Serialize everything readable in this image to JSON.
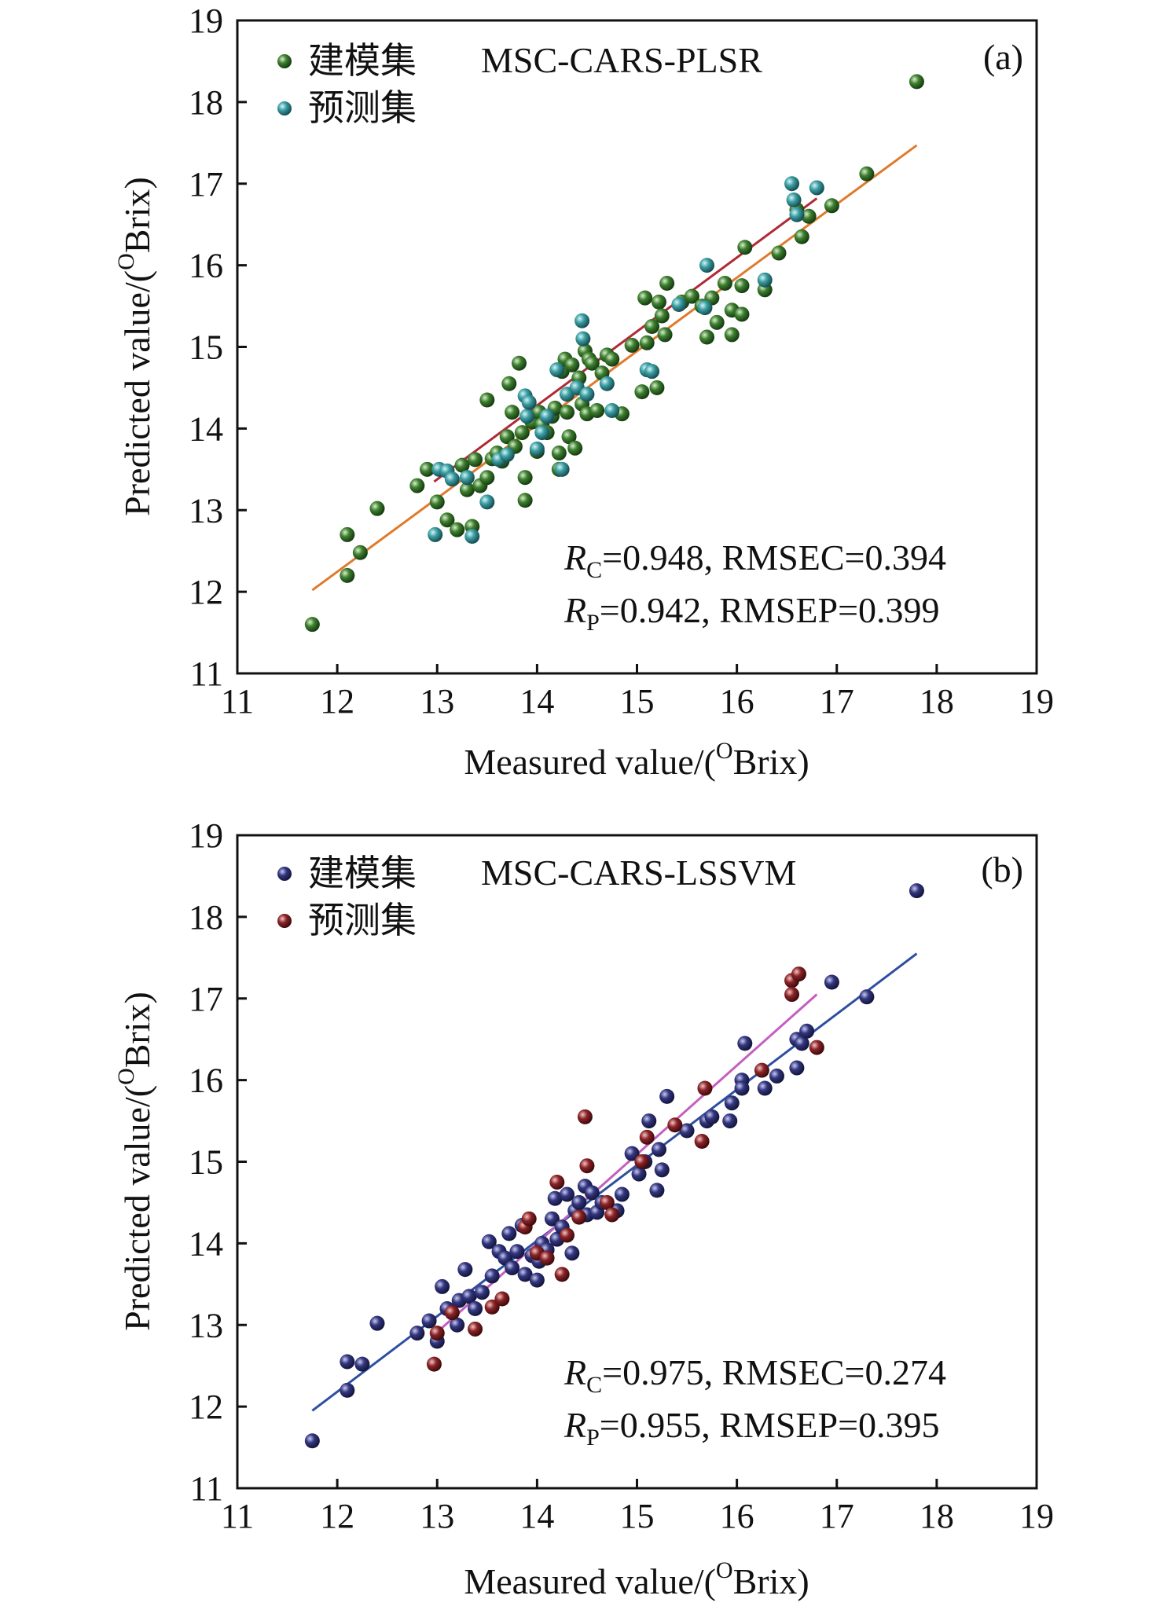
{
  "chart_data": [
    {
      "type": "scatter",
      "panel_label": "(a)",
      "model_label": "MSC-CARS-PLSR",
      "xlabel_parts": [
        "Measured value/(",
        "O",
        "Brix)"
      ],
      "ylabel_parts": [
        "Predicted value/(",
        "O",
        "Brix)"
      ],
      "xlim": [
        11,
        19
      ],
      "ylim": [
        11,
        19
      ],
      "xticks": [
        "11",
        "12",
        "13",
        "14",
        "15",
        "16",
        "17",
        "18",
        "19"
      ],
      "yticks": [
        "11",
        "12",
        "13",
        "14",
        "15",
        "16",
        "17",
        "18",
        "19"
      ],
      "legend": [
        "建模集",
        "预测集"
      ],
      "stats": [
        {
          "sym": "R",
          "sub": "C",
          "rest": "=0.948, RMSEC=0.394"
        },
        {
          "sym": "R",
          "sub": "P",
          "rest": "=0.942, RMSEP=0.399"
        }
      ],
      "colors": {
        "calibration": "#3e7f2f",
        "prediction": "#3a9ea3",
        "cal_line": "#e07a2c",
        "pred_line": "#b02a35"
      },
      "fit_lines": {
        "calibration": {
          "x": [
            11.75,
            17.8
          ],
          "y": [
            12.02,
            17.47
          ]
        },
        "prediction": {
          "x": [
            12.97,
            16.8
          ],
          "y": [
            13.35,
            16.82
          ]
        }
      },
      "series": [
        {
          "name": "建模集",
          "points": [
            [
              11.75,
              11.6
            ],
            [
              12.1,
              12.7
            ],
            [
              12.1,
              12.2
            ],
            [
              12.23,
              12.48
            ],
            [
              12.4,
              13.02
            ],
            [
              12.8,
              13.3
            ],
            [
              12.9,
              13.5
            ],
            [
              13.0,
              13.1
            ],
            [
              13.1,
              12.88
            ],
            [
              13.2,
              12.76
            ],
            [
              13.25,
              13.55
            ],
            [
              13.3,
              13.25
            ],
            [
              13.35,
              12.8
            ],
            [
              13.38,
              13.62
            ],
            [
              13.43,
              13.3
            ],
            [
              13.5,
              13.4
            ],
            [
              13.5,
              14.35
            ],
            [
              13.55,
              13.63
            ],
            [
              13.6,
              13.7
            ],
            [
              13.65,
              13.6
            ],
            [
              13.7,
              13.9
            ],
            [
              13.72,
              14.55
            ],
            [
              13.75,
              14.2
            ],
            [
              13.78,
              13.78
            ],
            [
              13.82,
              14.8
            ],
            [
              13.85,
              13.95
            ],
            [
              13.88,
              13.4
            ],
            [
              13.88,
              13.12
            ],
            [
              13.95,
              14.08
            ],
            [
              14.0,
              13.72
            ],
            [
              14.02,
              14.2
            ],
            [
              14.05,
              14.05
            ],
            [
              14.1,
              13.95
            ],
            [
              14.15,
              14.15
            ],
            [
              14.18,
              14.25
            ],
            [
              14.22,
              13.5
            ],
            [
              14.22,
              13.7
            ],
            [
              14.25,
              14.7
            ],
            [
              14.28,
              14.85
            ],
            [
              14.3,
              14.2
            ],
            [
              14.32,
              13.9
            ],
            [
              14.35,
              14.78
            ],
            [
              14.38,
              13.76
            ],
            [
              14.4,
              14.5
            ],
            [
              14.42,
              14.62
            ],
            [
              14.45,
              14.3
            ],
            [
              14.48,
              14.95
            ],
            [
              14.5,
              14.18
            ],
            [
              14.52,
              14.85
            ],
            [
              14.55,
              14.8
            ],
            [
              14.6,
              14.22
            ],
            [
              14.65,
              14.68
            ],
            [
              14.7,
              14.9
            ],
            [
              14.75,
              14.85
            ],
            [
              14.85,
              14.18
            ],
            [
              14.95,
              15.02
            ],
            [
              15.05,
              14.45
            ],
            [
              15.08,
              15.6
            ],
            [
              15.1,
              15.05
            ],
            [
              15.15,
              15.25
            ],
            [
              15.2,
              14.5
            ],
            [
              15.22,
              15.55
            ],
            [
              15.25,
              15.38
            ],
            [
              15.28,
              15.15
            ],
            [
              15.3,
              15.78
            ],
            [
              15.45,
              15.55
            ],
            [
              15.55,
              15.62
            ],
            [
              15.65,
              15.5
            ],
            [
              15.7,
              15.12
            ],
            [
              15.75,
              15.6
            ],
            [
              15.8,
              15.3
            ],
            [
              15.88,
              15.78
            ],
            [
              15.95,
              15.45
            ],
            [
              15.95,
              15.15
            ],
            [
              16.05,
              15.4
            ],
            [
              16.05,
              15.75
            ],
            [
              16.08,
              16.22
            ],
            [
              16.28,
              15.7
            ],
            [
              16.42,
              16.15
            ],
            [
              16.6,
              16.68
            ],
            [
              16.65,
              16.35
            ],
            [
              16.72,
              16.6
            ],
            [
              16.95,
              16.73
            ],
            [
              17.3,
              17.12
            ],
            [
              17.8,
              18.25
            ]
          ]
        },
        {
          "name": "预测集",
          "points": [
            [
              12.98,
              12.7
            ],
            [
              13.02,
              13.5
            ],
            [
              13.1,
              13.48
            ],
            [
              13.15,
              13.38
            ],
            [
              13.3,
              13.4
            ],
            [
              13.35,
              12.68
            ],
            [
              13.5,
              13.1
            ],
            [
              13.62,
              13.62
            ],
            [
              13.7,
              13.68
            ],
            [
              13.88,
              14.4
            ],
            [
              13.9,
              14.15
            ],
            [
              13.92,
              14.32
            ],
            [
              14.0,
              13.75
            ],
            [
              14.05,
              13.95
            ],
            [
              14.1,
              14.15
            ],
            [
              14.2,
              14.72
            ],
            [
              14.25,
              13.5
            ],
            [
              14.3,
              14.42
            ],
            [
              14.4,
              14.5
            ],
            [
              14.45,
              15.32
            ],
            [
              14.46,
              15.1
            ],
            [
              14.5,
              14.42
            ],
            [
              14.7,
              14.55
            ],
            [
              14.75,
              14.22
            ],
            [
              15.1,
              14.72
            ],
            [
              15.15,
              14.7
            ],
            [
              15.42,
              15.52
            ],
            [
              15.68,
              15.48
            ],
            [
              15.7,
              16.0
            ],
            [
              16.28,
              15.82
            ],
            [
              16.55,
              17.0
            ],
            [
              16.57,
              16.8
            ],
            [
              16.6,
              16.62
            ],
            [
              16.8,
              16.95
            ]
          ]
        }
      ]
    },
    {
      "type": "scatter",
      "panel_label": "(b)",
      "model_label": "MSC-CARS-LSSVM",
      "xlabel_parts": [
        "Measured value/(",
        "O",
        "Brix)"
      ],
      "ylabel_parts": [
        "Predicted value/(",
        "O",
        "Brix)"
      ],
      "xlim": [
        11,
        19
      ],
      "ylim": [
        11,
        19
      ],
      "xticks": [
        "11",
        "12",
        "13",
        "14",
        "15",
        "16",
        "17",
        "18",
        "19"
      ],
      "yticks": [
        "11",
        "12",
        "13",
        "14",
        "15",
        "16",
        "17",
        "18",
        "19"
      ],
      "legend": [
        "建模集",
        "预测集"
      ],
      "stats": [
        {
          "sym": "R",
          "sub": "C",
          "rest": "=0.975, RMSEC=0.274"
        },
        {
          "sym": "R",
          "sub": "P",
          "rest": "=0.955, RMSEP=0.395"
        }
      ],
      "colors": {
        "calibration": "#33367f",
        "prediction": "#8c2327",
        "cal_line": "#2e4fa0",
        "pred_line": "#c45fbf"
      },
      "fit_lines": {
        "calibration": {
          "x": [
            11.75,
            17.8
          ],
          "y": [
            11.95,
            17.55
          ]
        },
        "prediction": {
          "x": [
            12.97,
            16.8
          ],
          "y": [
            12.88,
            17.05
          ]
        }
      },
      "series": [
        {
          "name": "建模集",
          "points": [
            [
              11.75,
              11.58
            ],
            [
              12.1,
              12.55
            ],
            [
              12.1,
              12.2
            ],
            [
              12.25,
              12.52
            ],
            [
              12.4,
              13.02
            ],
            [
              12.8,
              12.9
            ],
            [
              12.92,
              13.05
            ],
            [
              13.0,
              12.8
            ],
            [
              13.05,
              13.47
            ],
            [
              13.1,
              13.2
            ],
            [
              13.2,
              13.0
            ],
            [
              13.22,
              13.3
            ],
            [
              13.28,
              13.68
            ],
            [
              13.32,
              13.35
            ],
            [
              13.38,
              13.2
            ],
            [
              13.45,
              13.4
            ],
            [
              13.52,
              14.02
            ],
            [
              13.55,
              13.6
            ],
            [
              13.62,
              13.9
            ],
            [
              13.68,
              13.82
            ],
            [
              13.72,
              14.12
            ],
            [
              13.75,
              13.7
            ],
            [
              13.8,
              13.9
            ],
            [
              13.85,
              14.22
            ],
            [
              13.88,
              13.62
            ],
            [
              13.95,
              13.85
            ],
            [
              14.0,
              13.55
            ],
            [
              14.02,
              13.78
            ],
            [
              14.05,
              14.0
            ],
            [
              14.1,
              13.92
            ],
            [
              14.15,
              14.3
            ],
            [
              14.18,
              14.55
            ],
            [
              14.2,
              14.05
            ],
            [
              14.25,
              14.2
            ],
            [
              14.3,
              14.6
            ],
            [
              14.35,
              13.88
            ],
            [
              14.38,
              14.4
            ],
            [
              14.42,
              14.5
            ],
            [
              14.48,
              14.7
            ],
            [
              14.5,
              14.35
            ],
            [
              14.55,
              14.62
            ],
            [
              14.6,
              14.38
            ],
            [
              14.65,
              14.5
            ],
            [
              14.8,
              14.4
            ],
            [
              14.85,
              14.6
            ],
            [
              14.95,
              15.1
            ],
            [
              15.02,
              14.85
            ],
            [
              15.08,
              15.0
            ],
            [
              15.12,
              15.5
            ],
            [
              15.2,
              14.65
            ],
            [
              15.22,
              15.15
            ],
            [
              15.25,
              14.9
            ],
            [
              15.3,
              15.8
            ],
            [
              15.5,
              15.38
            ],
            [
              15.7,
              15.5
            ],
            [
              15.75,
              15.55
            ],
            [
              15.93,
              15.5
            ],
            [
              15.95,
              15.72
            ],
            [
              16.05,
              16.0
            ],
            [
              16.05,
              15.9
            ],
            [
              16.08,
              16.45
            ],
            [
              16.28,
              15.9
            ],
            [
              16.4,
              16.05
            ],
            [
              16.6,
              16.5
            ],
            [
              16.6,
              16.15
            ],
            [
              16.65,
              16.45
            ],
            [
              16.7,
              16.6
            ],
            [
              16.95,
              17.2
            ],
            [
              17.3,
              17.02
            ],
            [
              17.8,
              18.32
            ]
          ]
        },
        {
          "name": "预测集",
          "points": [
            [
              12.97,
              12.52
            ],
            [
              13.0,
              12.9
            ],
            [
              13.15,
              13.15
            ],
            [
              13.38,
              12.95
            ],
            [
              13.55,
              13.22
            ],
            [
              13.65,
              13.32
            ],
            [
              13.88,
              14.2
            ],
            [
              13.92,
              14.3
            ],
            [
              14.0,
              13.88
            ],
            [
              14.1,
              13.82
            ],
            [
              14.2,
              14.75
            ],
            [
              14.25,
              13.62
            ],
            [
              14.3,
              14.1
            ],
            [
              14.42,
              14.32
            ],
            [
              14.48,
              15.55
            ],
            [
              14.5,
              14.95
            ],
            [
              14.7,
              14.5
            ],
            [
              14.75,
              14.35
            ],
            [
              15.05,
              15.0
            ],
            [
              15.1,
              15.3
            ],
            [
              15.38,
              15.45
            ],
            [
              15.65,
              15.25
            ],
            [
              15.68,
              15.9
            ],
            [
              16.25,
              16.12
            ],
            [
              16.55,
              17.22
            ],
            [
              16.55,
              17.05
            ],
            [
              16.62,
              17.3
            ],
            [
              16.8,
              16.4
            ]
          ]
        }
      ]
    }
  ]
}
